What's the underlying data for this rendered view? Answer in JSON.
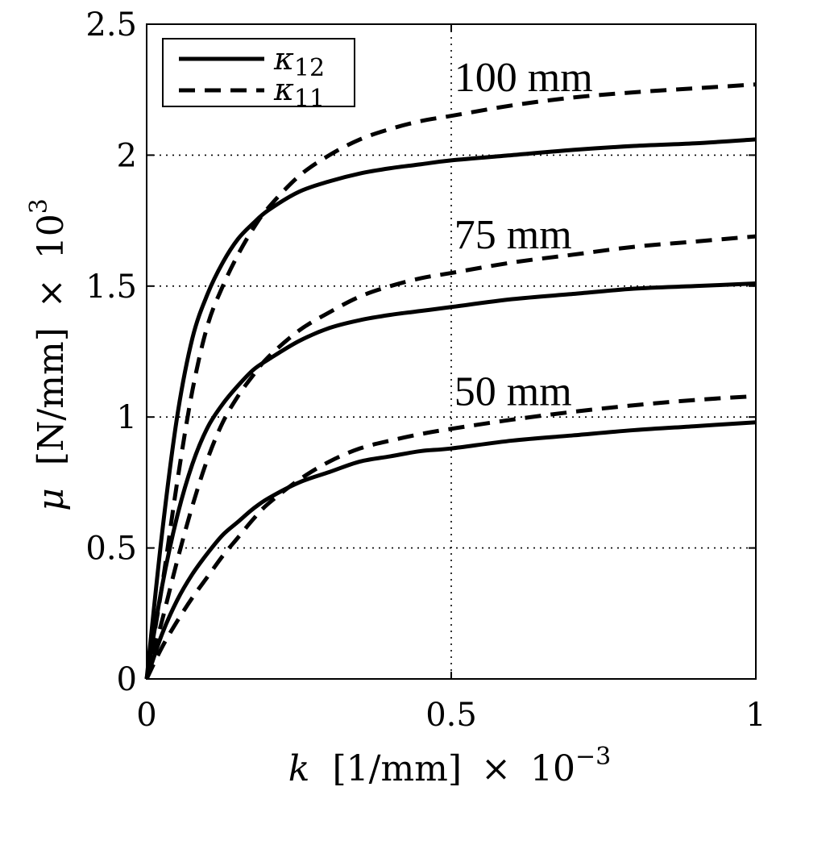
{
  "chart_data": {
    "type": "line",
    "xlabel": {
      "var": "k",
      "unit": "[1/mm]",
      "times": "×",
      "scale_base": "10",
      "scale_exp": "−3"
    },
    "ylabel": {
      "var": "μ",
      "unit": "[N/mm]",
      "times": "×",
      "scale_base": "10",
      "scale_exp": "3"
    },
    "xlim": [
      0,
      1
    ],
    "ylim": [
      0,
      2.5
    ],
    "xticks": [
      "0",
      "0.5",
      "1"
    ],
    "yticks": [
      "0",
      "0.5",
      "1",
      "1.5",
      "2",
      "2.5"
    ],
    "grid": true,
    "legend_position": "top-left",
    "legend": [
      {
        "symbol": "κ",
        "sub": "12",
        "style": "solid"
      },
      {
        "symbol": "κ",
        "sub": "11",
        "style": "dashed"
      }
    ],
    "annotations": [
      {
        "text": "100 mm",
        "x": 0.505,
        "y": 2.3
      },
      {
        "text": "75 mm",
        "x": 0.505,
        "y": 1.7
      },
      {
        "text": "50 mm",
        "x": 0.505,
        "y": 1.1
      }
    ],
    "x": [
      0,
      0.025,
      0.05,
      0.075,
      0.1,
      0.125,
      0.15,
      0.175,
      0.2,
      0.25,
      0.3,
      0.35,
      0.4,
      0.45,
      0.5,
      0.6,
      0.7,
      0.8,
      0.9,
      1.0
    ],
    "series": [
      {
        "group": "100 mm",
        "style": "solid",
        "values": [
          0,
          0.55,
          1.0,
          1.3,
          1.47,
          1.59,
          1.68,
          1.74,
          1.79,
          1.86,
          1.9,
          1.93,
          1.95,
          1.965,
          1.98,
          2.0,
          2.02,
          2.035,
          2.045,
          2.06
        ]
      },
      {
        "group": "100 mm",
        "style": "dashed",
        "values": [
          0,
          0.35,
          0.75,
          1.1,
          1.35,
          1.5,
          1.62,
          1.72,
          1.8,
          1.92,
          2.0,
          2.06,
          2.1,
          2.13,
          2.15,
          2.19,
          2.22,
          2.24,
          2.255,
          2.27
        ]
      },
      {
        "group": "75 mm",
        "style": "solid",
        "values": [
          0,
          0.35,
          0.62,
          0.82,
          0.96,
          1.05,
          1.12,
          1.18,
          1.22,
          1.29,
          1.34,
          1.37,
          1.39,
          1.405,
          1.42,
          1.45,
          1.47,
          1.49,
          1.5,
          1.51
        ]
      },
      {
        "group": "75 mm",
        "style": "dashed",
        "values": [
          0,
          0.22,
          0.45,
          0.66,
          0.84,
          0.98,
          1.08,
          1.16,
          1.23,
          1.33,
          1.4,
          1.46,
          1.5,
          1.53,
          1.55,
          1.59,
          1.62,
          1.65,
          1.67,
          1.69
        ]
      },
      {
        "group": "50 mm",
        "style": "solid",
        "values": [
          0,
          0.17,
          0.3,
          0.4,
          0.48,
          0.55,
          0.6,
          0.65,
          0.69,
          0.75,
          0.79,
          0.83,
          0.85,
          0.87,
          0.88,
          0.91,
          0.93,
          0.95,
          0.965,
          0.98
        ]
      },
      {
        "group": "50 mm",
        "style": "dashed",
        "values": [
          0,
          0.12,
          0.22,
          0.31,
          0.39,
          0.47,
          0.54,
          0.61,
          0.67,
          0.76,
          0.83,
          0.88,
          0.91,
          0.935,
          0.955,
          0.99,
          1.02,
          1.045,
          1.065,
          1.08
        ]
      }
    ]
  }
}
